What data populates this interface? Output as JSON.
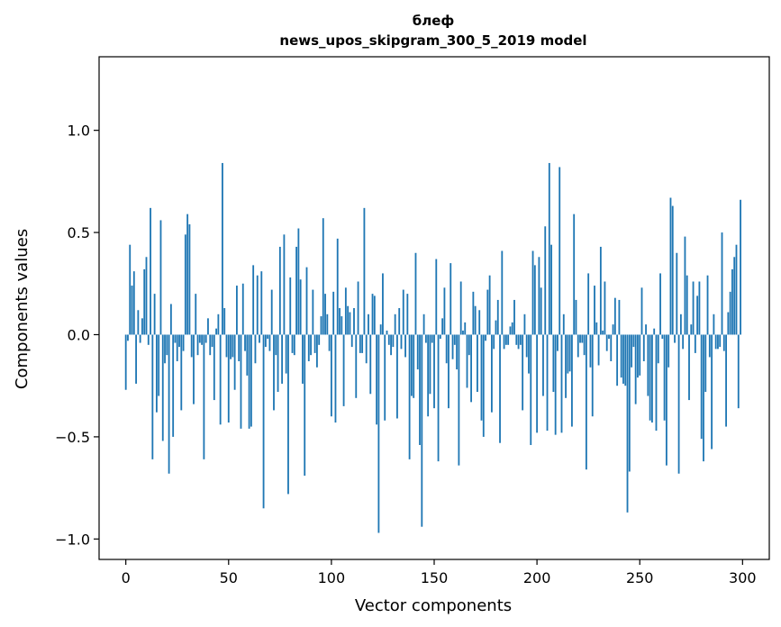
{
  "chart_data": {
    "type": "bar",
    "title": "блеф",
    "subtitle": "news_upos_skipgram_300_5_2019 model",
    "xlabel": "Vector components",
    "ylabel": "Components values",
    "xlim": [
      -13,
      313
    ],
    "ylim": [
      -1.1,
      1.36
    ],
    "xticks": [
      0,
      50,
      100,
      150,
      200,
      250,
      300
    ],
    "xtick_labels": [
      "0",
      "50",
      "100",
      "150",
      "200",
      "250",
      "300"
    ],
    "yticks": [
      -1.0,
      -0.5,
      0.0,
      0.5,
      1.0
    ],
    "ytick_labels": [
      "−1.0",
      "−0.5",
      "0.0",
      "0.5",
      "1.0"
    ],
    "bar_color": "#1f77b4",
    "grid": false,
    "x": [
      0,
      1,
      2,
      3,
      4,
      5,
      6,
      7,
      8,
      9,
      10,
      11,
      12,
      13,
      14,
      15,
      16,
      17,
      18,
      19,
      20,
      21,
      22,
      23,
      24,
      25,
      26,
      27,
      28,
      29,
      30,
      31,
      32,
      33,
      34,
      35,
      36,
      37,
      38,
      39,
      40,
      41,
      42,
      43,
      44,
      45,
      46,
      47,
      48,
      49,
      50,
      51,
      52,
      53,
      54,
      55,
      56,
      57,
      58,
      59,
      60,
      61,
      62,
      63,
      64,
      65,
      66,
      67,
      68,
      69,
      70,
      71,
      72,
      73,
      74,
      75,
      76,
      77,
      78,
      79,
      80,
      81,
      82,
      83,
      84,
      85,
      86,
      87,
      88,
      89,
      90,
      91,
      92,
      93,
      94,
      95,
      96,
      97,
      98,
      99,
      100,
      101,
      102,
      103,
      104,
      105,
      106,
      107,
      108,
      109,
      110,
      111,
      112,
      113,
      114,
      115,
      116,
      117,
      118,
      119,
      120,
      121,
      122,
      123,
      124,
      125,
      126,
      127,
      128,
      129,
      130,
      131,
      132,
      133,
      134,
      135,
      136,
      137,
      138,
      139,
      140,
      141,
      142,
      143,
      144,
      145,
      146,
      147,
      148,
      149,
      150,
      151,
      152,
      153,
      154,
      155,
      156,
      157,
      158,
      159,
      160,
      161,
      162,
      163,
      164,
      165,
      166,
      167,
      168,
      169,
      170,
      171,
      172,
      173,
      174,
      175,
      176,
      177,
      178,
      179,
      180,
      181,
      182,
      183,
      184,
      185,
      186,
      187,
      188,
      189,
      190,
      191,
      192,
      193,
      194,
      195,
      196,
      197,
      198,
      199,
      200,
      201,
      202,
      203,
      204,
      205,
      206,
      207,
      208,
      209,
      210,
      211,
      212,
      213,
      214,
      215,
      216,
      217,
      218,
      219,
      220,
      221,
      222,
      223,
      224,
      225,
      226,
      227,
      228,
      229,
      230,
      231,
      232,
      233,
      234,
      235,
      236,
      237,
      238,
      239,
      240,
      241,
      242,
      243,
      244,
      245,
      246,
      247,
      248,
      249,
      250,
      251,
      252,
      253,
      254,
      255,
      256,
      257,
      258,
      259,
      260,
      261,
      262,
      263,
      264,
      265,
      266,
      267,
      268,
      269,
      270,
      271,
      272,
      273,
      274,
      275,
      276,
      277,
      278,
      279,
      280,
      281,
      282,
      283,
      284,
      285,
      286,
      287,
      288,
      289,
      290,
      291,
      292,
      293,
      294,
      295,
      296,
      297,
      298,
      299
    ],
    "values": [
      -0.27,
      -0.03,
      0.44,
      0.24,
      0.31,
      -0.24,
      0.12,
      -0.04,
      0.08,
      0.32,
      0.38,
      -0.05,
      0.62,
      -0.61,
      0.2,
      -0.38,
      -0.3,
      0.56,
      -0.52,
      -0.14,
      -0.1,
      -0.68,
      0.15,
      -0.5,
      -0.04,
      -0.13,
      -0.06,
      -0.37,
      -0.08,
      0.49,
      0.59,
      0.54,
      -0.11,
      -0.34,
      0.2,
      -0.1,
      -0.04,
      -0.05,
      -0.61,
      -0.04,
      0.08,
      -0.1,
      -0.06,
      -0.32,
      0.03,
      0.1,
      -0.44,
      0.84,
      0.13,
      -0.11,
      -0.43,
      -0.12,
      -0.11,
      -0.27,
      0.24,
      -0.13,
      -0.46,
      0.25,
      -0.08,
      -0.2,
      -0.46,
      -0.45,
      0.34,
      -0.14,
      0.29,
      -0.04,
      0.31,
      -0.85,
      -0.06,
      -0.02,
      -0.08,
      0.22,
      -0.37,
      -0.1,
      -0.28,
      0.43,
      -0.24,
      0.49,
      -0.19,
      -0.78,
      0.28,
      -0.09,
      -0.1,
      0.43,
      0.52,
      0.27,
      -0.24,
      -0.69,
      0.33,
      -0.13,
      -0.1,
      0.22,
      -0.09,
      -0.16,
      -0.05,
      0.09,
      0.57,
      0.2,
      0.1,
      -0.08,
      -0.4,
      0.21,
      -0.43,
      0.47,
      0.13,
      0.09,
      -0.35,
      0.23,
      0.14,
      0.11,
      -0.06,
      0.13,
      -0.31,
      0.26,
      -0.09,
      -0.09,
      0.62,
      -0.14,
      0.1,
      -0.29,
      0.2,
      0.19,
      -0.44,
      -0.97,
      0.05,
      0.3,
      -0.42,
      0.02,
      -0.05,
      -0.1,
      -0.06,
      0.1,
      -0.41,
      0.13,
      -0.07,
      0.22,
      -0.11,
      0.2,
      -0.61,
      -0.3,
      -0.31,
      0.4,
      -0.17,
      -0.54,
      -0.94,
      0.1,
      -0.04,
      -0.4,
      -0.29,
      -0.04,
      -0.36,
      0.37,
      -0.62,
      -0.02,
      0.08,
      0.23,
      -0.14,
      -0.36,
      0.35,
      -0.12,
      -0.05,
      -0.17,
      -0.64,
      0.26,
      0.02,
      0.06,
      -0.26,
      -0.1,
      -0.33,
      0.21,
      0.14,
      -0.28,
      0.12,
      -0.42,
      -0.5,
      -0.03,
      0.22,
      0.29,
      -0.38,
      -0.07,
      0.07,
      0.17,
      -0.53,
      0.41,
      -0.07,
      -0.05,
      -0.05,
      0.04,
      0.06,
      0.17,
      -0.05,
      -0.07,
      -0.05,
      -0.37,
      0.1,
      -0.11,
      -0.19,
      -0.54,
      0.41,
      0.34,
      -0.48,
      0.38,
      0.23,
      -0.3,
      0.53,
      -0.47,
      0.84,
      0.44,
      -0.28,
      -0.49,
      -0.08,
      0.82,
      -0.48,
      0.1,
      -0.31,
      -0.19,
      -0.18,
      -0.45,
      0.59,
      0.17,
      -0.11,
      -0.04,
      -0.04,
      -0.1,
      -0.66,
      0.3,
      -0.16,
      -0.4,
      0.24,
      0.06,
      -0.15,
      0.43,
      0.02,
      0.26,
      -0.08,
      -0.02,
      -0.13,
      0.05,
      0.18,
      -0.25,
      0.17,
      -0.21,
      -0.24,
      -0.25,
      -0.87,
      -0.67,
      -0.16,
      -0.06,
      -0.34,
      -0.21,
      -0.2,
      0.23,
      -0.13,
      0.05,
      -0.3,
      -0.42,
      -0.43,
      0.03,
      -0.47,
      -0.14,
      0.3,
      -0.02,
      -0.42,
      -0.64,
      -0.16,
      0.67,
      0.63,
      -0.04,
      0.4,
      -0.68,
      0.1,
      -0.07,
      0.48,
      0.29,
      -0.32,
      0.05,
      0.26,
      -0.09,
      0.19,
      0.26,
      -0.51,
      -0.62,
      -0.28,
      0.29,
      -0.11,
      -0.56,
      0.1,
      -0.07,
      -0.07,
      -0.06,
      0.5,
      -0.08,
      -0.45,
      0.11,
      0.21,
      0.32,
      0.38,
      0.44,
      -0.36,
      0.66
    ],
    "values_display_note": ""
  }
}
